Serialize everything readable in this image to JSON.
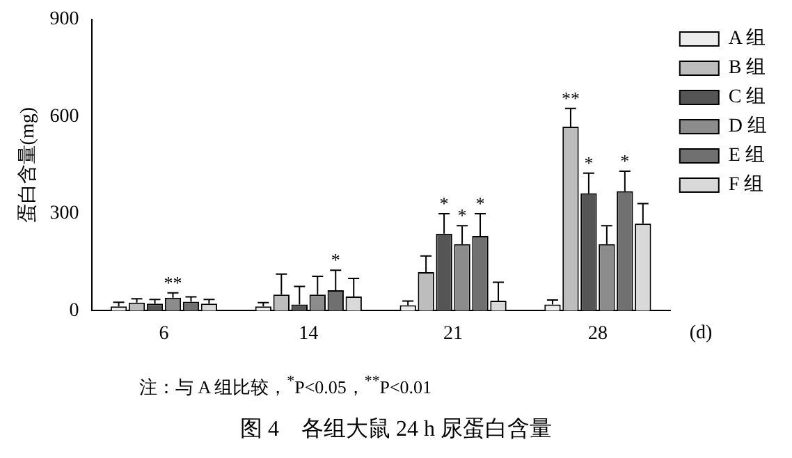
{
  "chart_data": {
    "type": "bar",
    "title": "图 4　各组大鼠 24 h 尿蛋白含量",
    "xlabel": "(d)",
    "ylabel": "蛋白含量(mg)",
    "categories": [
      "6",
      "14",
      "21",
      "28"
    ],
    "series": [
      {
        "name": "A 组",
        "color": "#ececec",
        "values": [
          13,
          13,
          17,
          19
        ],
        "errors": [
          13,
          12,
          13,
          14
        ]
      },
      {
        "name": "B 组",
        "color": "#bdbdbd",
        "values": [
          25,
          50,
          119,
          569
        ],
        "errors": [
          12,
          63,
          50,
          56
        ],
        "value_labels": [
          null,
          null,
          null,
          "**"
        ]
      },
      {
        "name": "C 组",
        "color": "#555555",
        "values": [
          22,
          19,
          238,
          363
        ],
        "errors": [
          13,
          56,
          62,
          62
        ],
        "value_labels": [
          null,
          null,
          "*",
          "*"
        ]
      },
      {
        "name": "D 组",
        "color": "#8c8c8c",
        "values": [
          40,
          50,
          206,
          206
        ],
        "errors": [
          15,
          56,
          57,
          57
        ],
        "value_labels": [
          "**",
          null,
          "*",
          null
        ]
      },
      {
        "name": "E 组",
        "color": "#707070",
        "values": [
          28,
          63,
          231,
          369
        ],
        "errors": [
          15,
          62,
          69,
          62
        ],
        "value_labels": [
          null,
          "*",
          "*",
          "*"
        ]
      },
      {
        "name": "F 组",
        "color": "#d9d9d9",
        "values": [
          22,
          44,
          31,
          269
        ],
        "errors": [
          13,
          56,
          57,
          62
        ]
      }
    ],
    "ylim": [
      0,
      900
    ],
    "yticks": [
      0,
      300,
      600,
      900
    ],
    "grid": false,
    "legend": "top right",
    "annotations": [
      "注：与 A 组比较，$^{*}$P<0.05，$^{**}$P<0.01"
    ]
  }
}
